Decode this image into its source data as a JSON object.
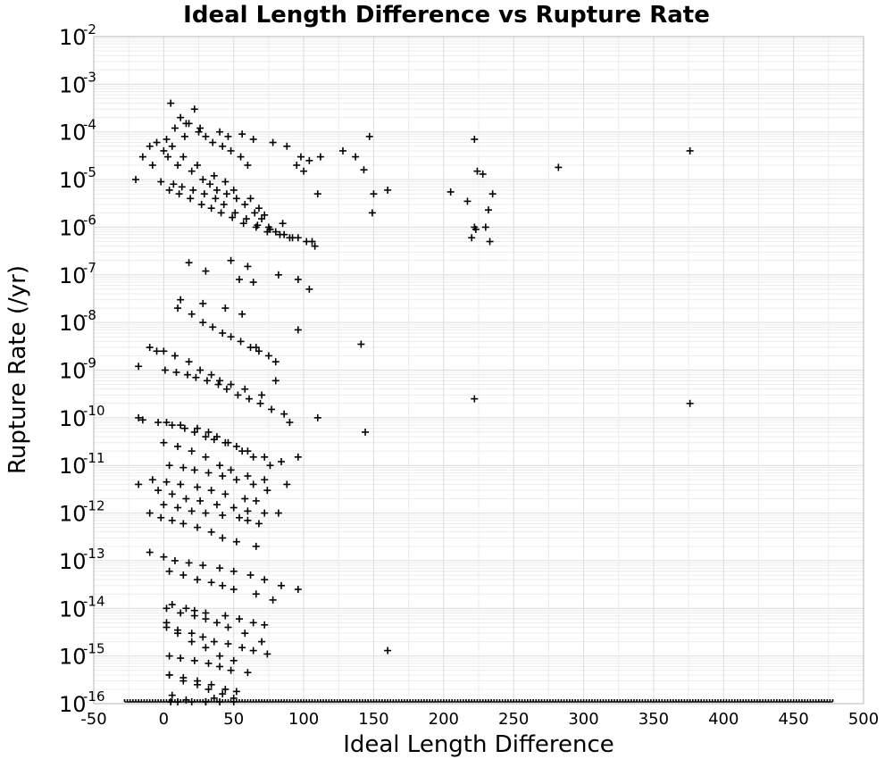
{
  "chart_data": {
    "type": "scatter",
    "title": "Ideal Length Difference vs Rupture Rate",
    "xlabel": "Ideal Length Difference",
    "ylabel": "Rupture Rate (/yr)",
    "xlim": [
      -50,
      500
    ],
    "ylim": [
      1e-16,
      0.01
    ],
    "y_scale": "log",
    "x_ticks": [
      "-50",
      "0",
      "50",
      "100",
      "150",
      "200",
      "250",
      "300",
      "350",
      "400",
      "450",
      "500"
    ],
    "y_ticks": [
      {
        "base": "10",
        "exp": "-16"
      },
      {
        "base": "10",
        "exp": "-15"
      },
      {
        "base": "10",
        "exp": "-14"
      },
      {
        "base": "10",
        "exp": "-13"
      },
      {
        "base": "10",
        "exp": "-12"
      },
      {
        "base": "10",
        "exp": "-11"
      },
      {
        "base": "10",
        "exp": "-10"
      },
      {
        "base": "10",
        "exp": "-9"
      },
      {
        "base": "10",
        "exp": "-8"
      },
      {
        "base": "10",
        "exp": "-7"
      },
      {
        "base": "10",
        "exp": "-6"
      },
      {
        "base": "10",
        "exp": "-5"
      },
      {
        "base": "10",
        "exp": "-4"
      },
      {
        "base": "10",
        "exp": "-3"
      },
      {
        "base": "10",
        "exp": "-2"
      }
    ],
    "grid": true,
    "marker": "plus",
    "marker_color": "#000000",
    "series": [
      {
        "x": [
          5,
          12,
          18,
          25,
          30,
          35,
          42,
          48,
          55,
          60,
          22,
          8,
          15,
          -5,
          -10,
          0,
          3,
          10,
          20,
          28,
          33,
          38,
          45,
          52,
          58,
          65,
          70,
          75,
          80,
          90,
          -15,
          -20,
          -8,
          2,
          6,
          14,
          24,
          36,
          44,
          50,
          62,
          68,
          72,
          85,
          95,
          100,
          110,
          112,
          128,
          137,
          143,
          147,
          150,
          160,
          205,
          217,
          222,
          224,
          228,
          232,
          235,
          282,
          376,
          223,
          230,
          16,
          26,
          40,
          46,
          56,
          64,
          78,
          88,
          98,
          104,
          4,
          11,
          19,
          27,
          34,
          41,
          49,
          57,
          66,
          74,
          83,
          92,
          102,
          108,
          -2,
          7,
          13,
          21,
          29,
          37,
          43,
          51,
          59,
          67,
          76,
          86,
          96,
          106,
          48,
          60,
          18,
          30,
          54,
          64,
          82,
          96,
          104,
          149,
          220,
          222,
          233,
          -18,
          -5,
          10,
          20,
          28,
          35,
          42,
          48,
          55,
          62,
          68,
          75,
          80,
          1,
          9,
          17,
          23,
          31,
          39,
          45,
          53,
          61,
          69,
          77,
          86,
          12,
          28,
          44,
          56,
          66,
          80,
          -10,
          0,
          8,
          18,
          26,
          34,
          40,
          48,
          58,
          70,
          96,
          141,
          -18,
          -4,
          6,
          15,
          22,
          30,
          36,
          44,
          52,
          60,
          72,
          84,
          -15,
          2,
          12,
          24,
          32,
          38,
          46,
          56,
          64,
          76,
          90,
          222,
          376,
          0,
          10,
          20,
          30,
          40,
          48,
          60,
          72,
          88,
          110,
          144,
          4,
          14,
          22,
          32,
          42,
          52,
          64,
          74,
          96,
          -8,
          2,
          12,
          24,
          34,
          44,
          58,
          66,
          -4,
          6,
          16,
          26,
          38,
          50,
          60,
          72,
          0,
          10,
          20,
          30,
          42,
          54,
          60,
          68,
          82,
          -18,
          -10,
          -2,
          6,
          14,
          24,
          34,
          42,
          52,
          66,
          -10,
          0,
          8,
          18,
          28,
          40,
          50,
          62,
          72,
          84,
          96,
          4,
          14,
          24,
          34,
          42,
          50,
          66,
          78,
          6,
          16,
          22,
          30,
          44,
          54,
          64,
          72,
          2,
          10,
          20,
          28,
          36,
          46,
          56,
          64,
          74,
          4,
          12,
          22,
          32,
          40,
          48,
          60,
          4,
          14,
          24,
          34,
          44,
          52,
          2,
          10,
          20,
          30,
          40,
          50,
          2,
          12,
          22,
          30,
          38,
          46,
          58,
          70,
          160,
          4,
          14,
          24,
          32,
          42,
          50,
          6,
          16,
          30,
          36,
          5,
          10,
          20,
          30,
          40,
          50
        ],
        "y": [
          0.0004,
          0.0002,
          0.00015,
          0.0001,
          8e-05,
          6e-05,
          5e-05,
          4e-05,
          3e-05,
          2e-05,
          0.0003,
          0.00012,
          8e-05,
          6e-05,
          5e-05,
          4e-05,
          3e-05,
          2e-05,
          1.5e-05,
          1e-05,
          8e-06,
          6e-06,
          5e-06,
          4e-06,
          3e-06,
          2e-06,
          1.5e-06,
          1e-06,
          8e-07,
          6e-07,
          3e-05,
          1e-05,
          2e-05,
          7e-05,
          5e-05,
          3e-05,
          2e-05,
          1.2e-05,
          9e-06,
          6e-06,
          4e-06,
          2.5e-06,
          1.8e-06,
          1.2e-06,
          2e-05,
          1.5e-05,
          5e-06,
          3e-05,
          4e-05,
          3e-05,
          1.6e-05,
          8e-05,
          5e-06,
          6e-06,
          5.5e-06,
          3.5e-06,
          7e-05,
          1.5e-05,
          1.3e-05,
          2.3e-06,
          5e-06,
          1.8e-05,
          4e-05,
          9e-07,
          1e-06,
          0.00015,
          0.00012,
          0.0001,
          8e-05,
          9e-05,
          7e-05,
          6e-05,
          5e-05,
          3e-05,
          2.5e-05,
          6e-06,
          5e-06,
          4e-06,
          3e-06,
          2.5e-06,
          2e-06,
          1.6e-06,
          1.2e-06,
          1e-06,
          8e-07,
          7e-07,
          6e-07,
          5e-07,
          4e-07,
          9e-06,
          8e-06,
          7e-06,
          6e-06,
          5e-06,
          4e-06,
          3e-06,
          2e-06,
          1.5e-06,
          1.1e-06,
          9e-07,
          7e-07,
          6e-07,
          5e-07,
          2e-07,
          1.5e-07,
          1.8e-07,
          1.2e-07,
          8e-08,
          7e-08,
          1e-07,
          8e-08,
          5e-08,
          2e-06,
          6e-07,
          1e-06,
          5e-07,
          1.2e-09,
          2.5e-09,
          2e-08,
          1.5e-08,
          1e-08,
          8e-09,
          6e-09,
          5e-09,
          4e-09,
          3e-09,
          2.5e-09,
          2e-09,
          1.5e-09,
          1e-09,
          9e-10,
          8e-10,
          7e-10,
          6e-10,
          5e-10,
          4e-10,
          3e-10,
          2.5e-10,
          2e-10,
          1.5e-10,
          1.2e-10,
          3e-08,
          2.5e-08,
          2e-08,
          1.5e-08,
          3e-09,
          6e-10,
          3e-09,
          2.5e-09,
          2e-09,
          1.5e-09,
          1e-09,
          8e-10,
          6e-10,
          5e-10,
          4e-10,
          3e-10,
          7e-09,
          3.5e-09,
          1e-10,
          8e-11,
          7e-11,
          6e-11,
          5e-11,
          4e-11,
          3.5e-11,
          3e-11,
          2.5e-11,
          2e-11,
          1.5e-11,
          1.2e-11,
          9e-11,
          8e-11,
          7e-11,
          6e-11,
          5e-11,
          4e-11,
          3e-11,
          2e-11,
          1.5e-11,
          1e-11,
          8e-11,
          2.5e-10,
          2e-10,
          3e-11,
          2.5e-11,
          2e-11,
          1.5e-11,
          1e-11,
          8e-12,
          6e-12,
          5e-12,
          4e-12,
          1e-10,
          5e-11,
          1e-11,
          9e-12,
          8e-12,
          7e-12,
          6e-12,
          5e-12,
          4e-12,
          3e-12,
          1.5e-11,
          5e-12,
          4.5e-12,
          4e-12,
          3.5e-12,
          3e-12,
          2.5e-12,
          2e-12,
          1.8e-12,
          3e-12,
          2.5e-12,
          2e-12,
          1.8e-12,
          1.5e-12,
          1.3e-12,
          1.1e-12,
          1e-12,
          1.5e-12,
          1.3e-12,
          1.1e-12,
          1e-12,
          9e-13,
          8e-13,
          7e-13,
          6e-13,
          1e-12,
          4e-12,
          1e-12,
          8e-13,
          7e-13,
          6e-13,
          5e-13,
          4e-13,
          3e-13,
          2.5e-13,
          2e-13,
          1.5e-13,
          1.2e-13,
          1e-13,
          9e-14,
          8e-14,
          7e-14,
          6e-14,
          5e-14,
          4e-14,
          3e-14,
          2.5e-14,
          6e-14,
          5e-14,
          4e-14,
          3.5e-14,
          3e-14,
          2.5e-14,
          2e-14,
          1.5e-14,
          1.2e-14,
          1e-14,
          9e-15,
          8e-15,
          7e-15,
          6e-15,
          5e-15,
          4.5e-15,
          4e-15,
          3.5e-15,
          3e-15,
          2.5e-15,
          2e-15,
          1.8e-15,
          1.5e-15,
          1.3e-15,
          1.1e-15,
          1e-15,
          9e-16,
          8e-16,
          7e-16,
          6e-16,
          5e-16,
          4.5e-16,
          4e-16,
          3.5e-16,
          3e-16,
          2.5e-16,
          2e-16,
          1.8e-16,
          5e-15,
          3e-15,
          2e-15,
          1.5e-15,
          1e-15,
          8e-16,
          1e-14,
          8e-15,
          7e-15,
          6e-15,
          5e-15,
          4e-15,
          3e-15,
          2e-15,
          1.3e-15,
          4e-16,
          3e-16,
          2.5e-16,
          2e-16,
          1.6e-16,
          1.3e-16,
          1.5e-16,
          1.2e-16,
          1.1e-16,
          1.3e-16,
          1e-16,
          1e-16,
          1e-16,
          1e-16,
          1e-16,
          1e-16
        ]
      }
    ],
    "baseline_band": {
      "x_range": [
        -28,
        478
      ],
      "y": 1e-16
    }
  }
}
